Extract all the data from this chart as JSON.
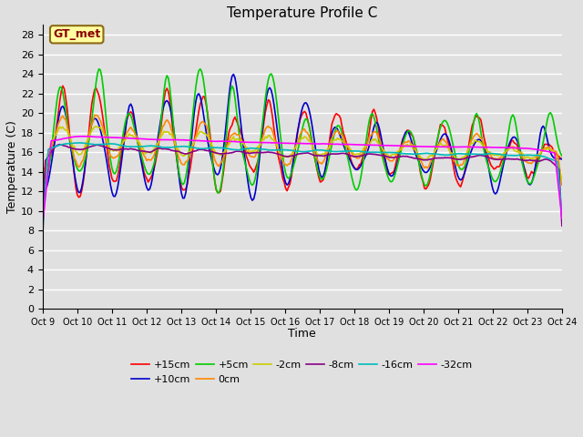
{
  "title": "Temperature Profile C",
  "xlabel": "Time",
  "ylabel": "Temperature (C)",
  "ylim": [
    0,
    29
  ],
  "yticks": [
    0,
    2,
    4,
    6,
    8,
    10,
    12,
    14,
    16,
    18,
    20,
    22,
    24,
    26,
    28
  ],
  "xtick_labels": [
    "Oct 9",
    "Oct 10",
    "Oct 11",
    "Oct 12",
    "Oct 13",
    "Oct 14",
    "Oct 15",
    "Oct 16",
    "Oct 17",
    "Oct 18",
    "Oct 19",
    "Oct 20",
    "Oct 21",
    "Oct 22",
    "Oct 23",
    "Oct 24"
  ],
  "annotation_text": "GT_met",
  "annotation_color": "#8B0000",
  "annotation_bg": "#FFFFA0",
  "legend_entries": [
    "+15cm",
    "+10cm",
    "+5cm",
    "0cm",
    "-2cm",
    "-8cm",
    "-16cm",
    "-32cm"
  ],
  "line_colors": [
    "#FF0000",
    "#0000CC",
    "#00CC00",
    "#FF8800",
    "#CCCC00",
    "#880088",
    "#00BBBB",
    "#FF00FF"
  ],
  "line_widths": [
    1.2,
    1.2,
    1.2,
    1.2,
    1.2,
    1.2,
    1.2,
    1.2
  ],
  "background_color": "#E0E0E0",
  "plot_bg_color": "#E0E0E0",
  "n_days": 15,
  "n_per_day": 24
}
